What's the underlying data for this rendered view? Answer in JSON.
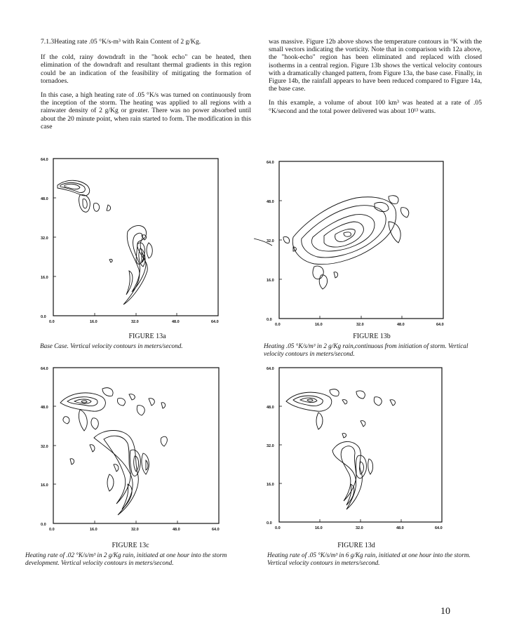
{
  "section": {
    "heading": "7.1.3Heating rate .05 °K/s-m³ with Rain Content of 2 g/Kg.",
    "paragraphs_left": [
      "If the cold, rainy downdraft in the \"hook echo\" can be heated, then elimination of the downdraft and resultant thermal gradients in this region could be an indication of the feasibility of mitigating the formation of tornadoes.",
      "In this case, a high heating rate of .05 °K/s was turned on continuously from the inception of the storm. The heating was applied to all regions with a rainwater density of 2 g/Kg or greater. There was no power absorbed until about the 20 minute point, when rain started to form. The modification in this case"
    ],
    "paragraphs_right": [
      "was massive. Figure 12b above shows the temperature contours in °K with the small vectors indicating the vorticity. Note that in comparison with 12a above, the \"hook-echo\" region has been eliminated and replaced with closed isotherms in a central region. Figure 13b shows the vertical velocity contours with a dramatically changed pattern, from Figure 13a, the base case. Finally, in Figure 14b, the rainfall appears to have been reduced compared to Figure 14a, the base case.",
      "In this example, a volume of about 100 km³ was heated at a rate of .05 °K/second and the total power delivered was about 10¹³ watts."
    ]
  },
  "axis_ticks": [
    "0.0",
    "16.0",
    "32.0",
    "48.0",
    "64.0"
  ],
  "figures": [
    {
      "title": "FIGURE 13a",
      "caption": "Base Case. Vertical velocity contours in meters/second."
    },
    {
      "title": "FIGURE 13b",
      "caption": "Heating .05 °K/s/m³ in 2 g/Kg rain,continuous from initiation of storm. Vertical velocity contours in meters/second."
    },
    {
      "title": "FIGURE 13c",
      "caption": "Heating rate of .02 °K/s/m³ in 2 g/Kg rain, initiated at one hour into the storm development. Vertical velocity contours in meters/second."
    },
    {
      "title": "FIGURE 13d",
      "caption": "Heating rate of .05 °K/s/m³ in 6 g/Kg rain, initiated at one hour into the storm. Vertical velocity contours in meters/second."
    }
  ],
  "page_number": "10"
}
